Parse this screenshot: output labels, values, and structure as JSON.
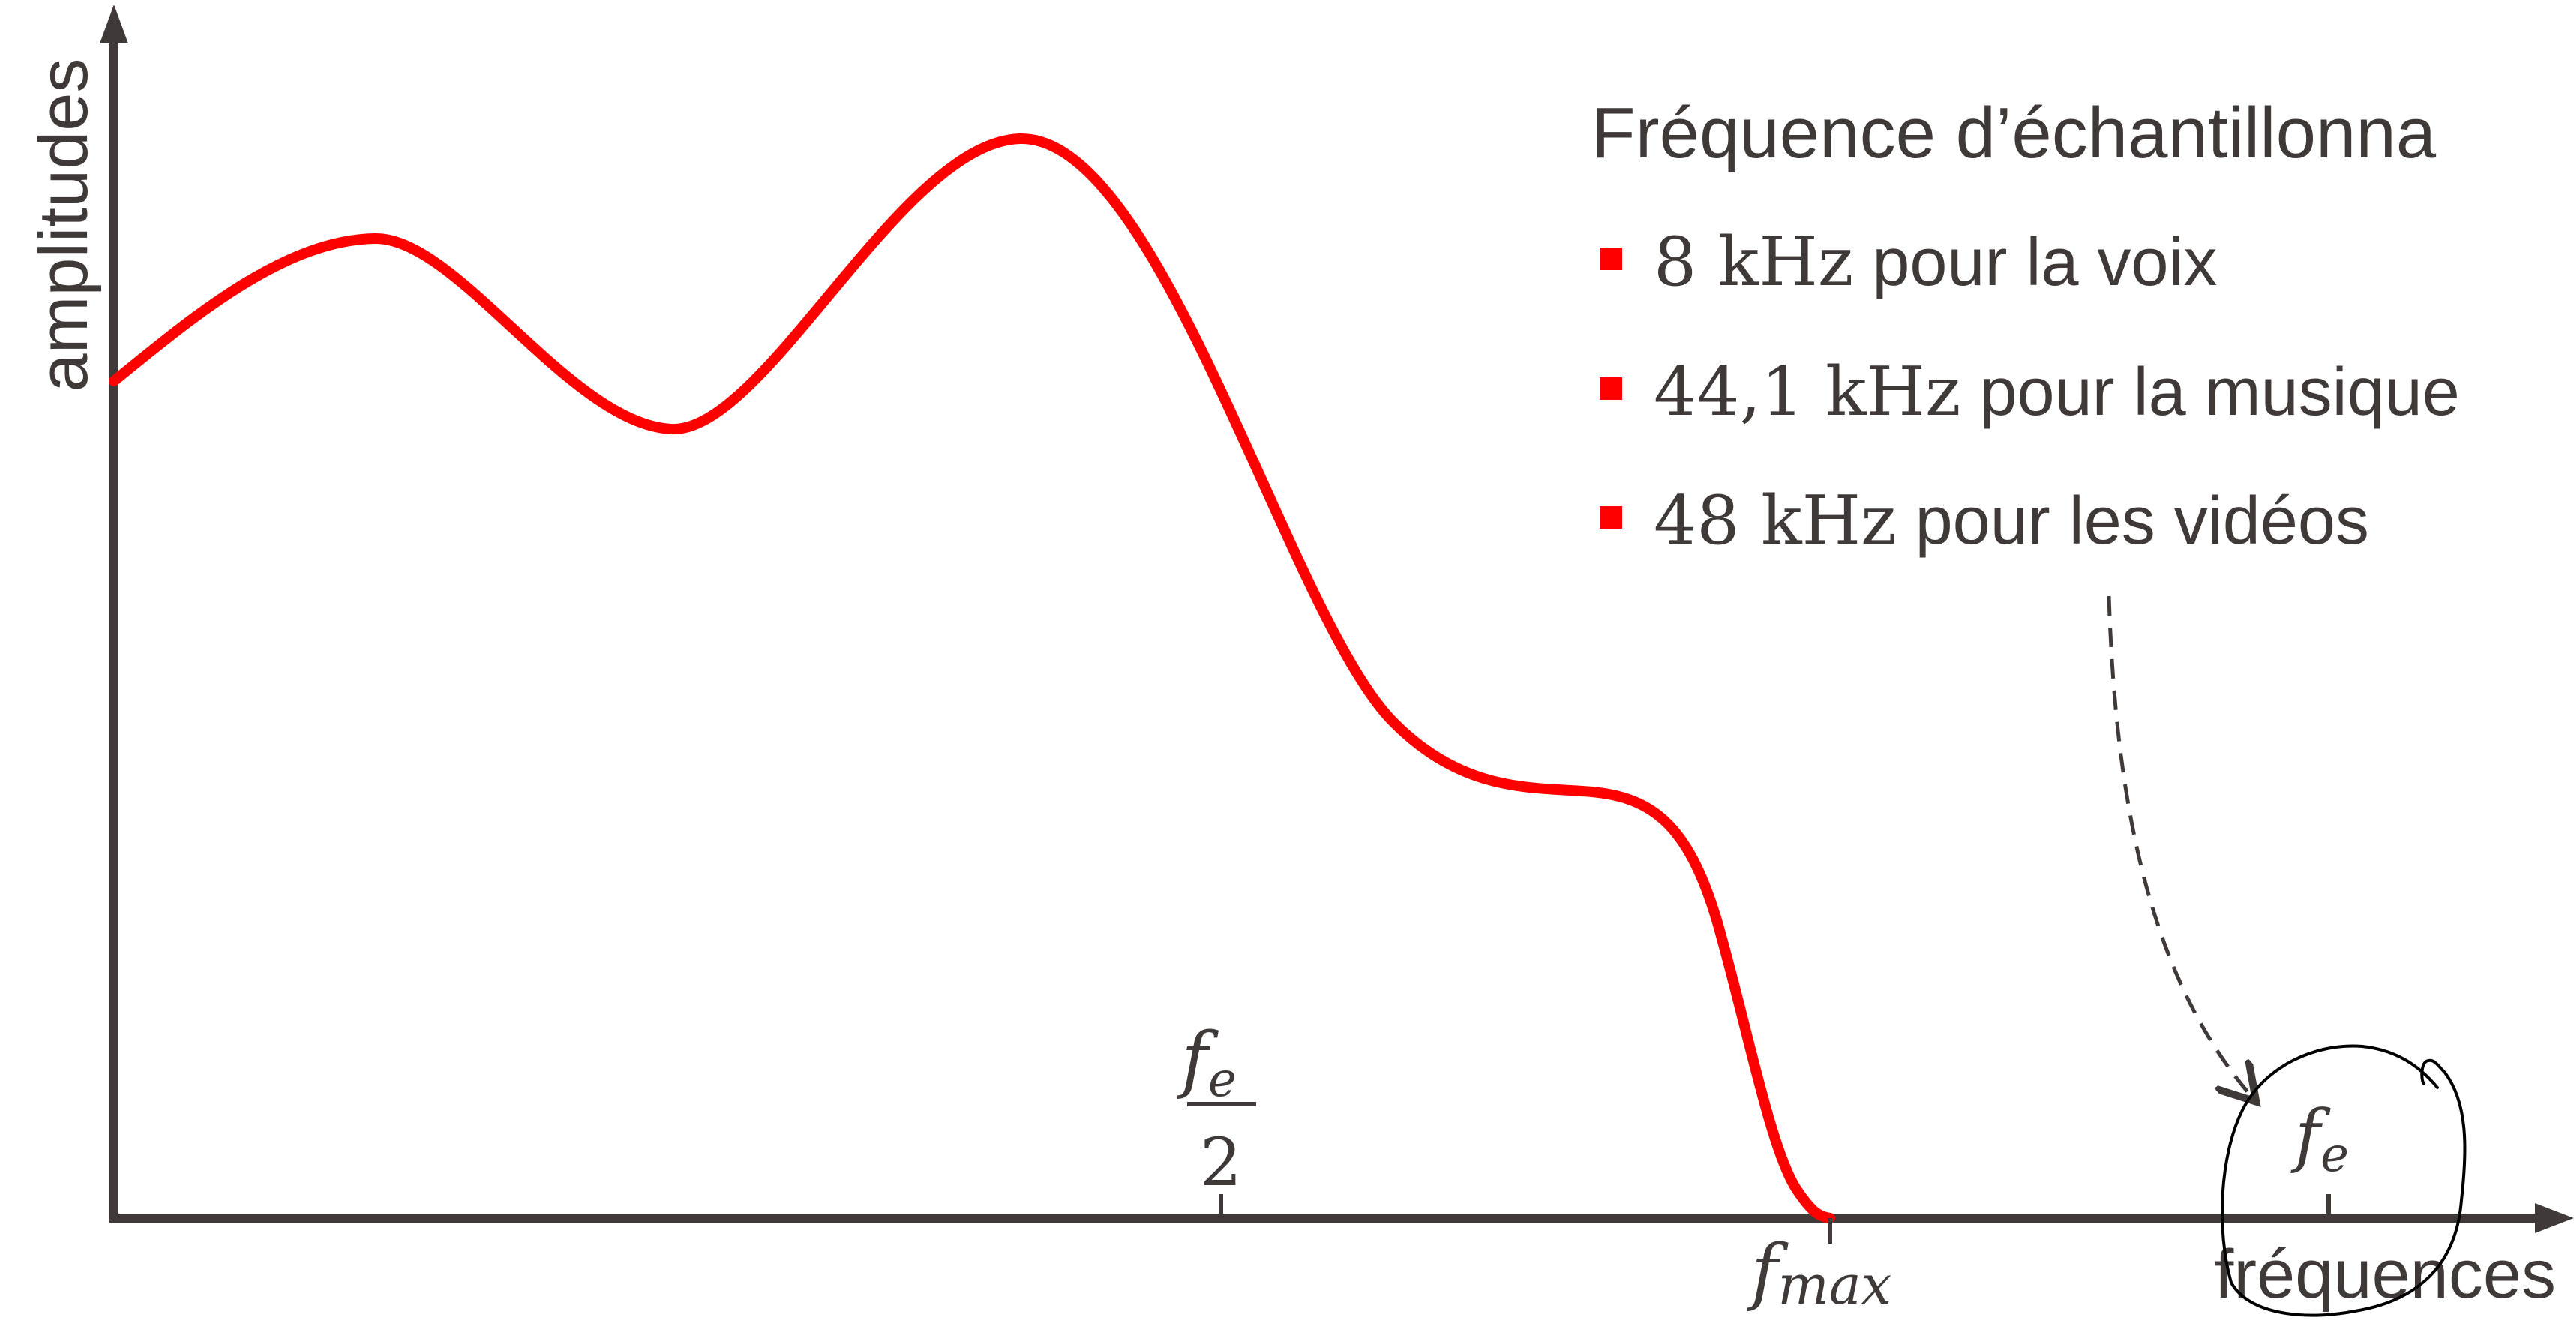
{
  "axes": {
    "y_label": "amplitudes",
    "x_label": "fréquences"
  },
  "ticks": {
    "half_fe": {
      "numerator": "f",
      "numerator_sub": "e",
      "denominator": "2"
    },
    "fmax": {
      "base": "f",
      "sub": "max"
    },
    "fe": {
      "base": "f",
      "sub": "e"
    }
  },
  "legend": {
    "title": "Fréquence d’échantillonna",
    "items": [
      {
        "value": "8 kHz",
        "text": " pour la voix"
      },
      {
        "value": "44,1 kHz",
        "text": " pour la musique"
      },
      {
        "value": "48 kHz",
        "text": " pour les vidéos"
      }
    ]
  },
  "colors": {
    "curve": "#ff0000",
    "axis": "#3f3a38",
    "text": "#3f3a38",
    "bullet": "#ff0000",
    "ink": "#000000"
  }
}
